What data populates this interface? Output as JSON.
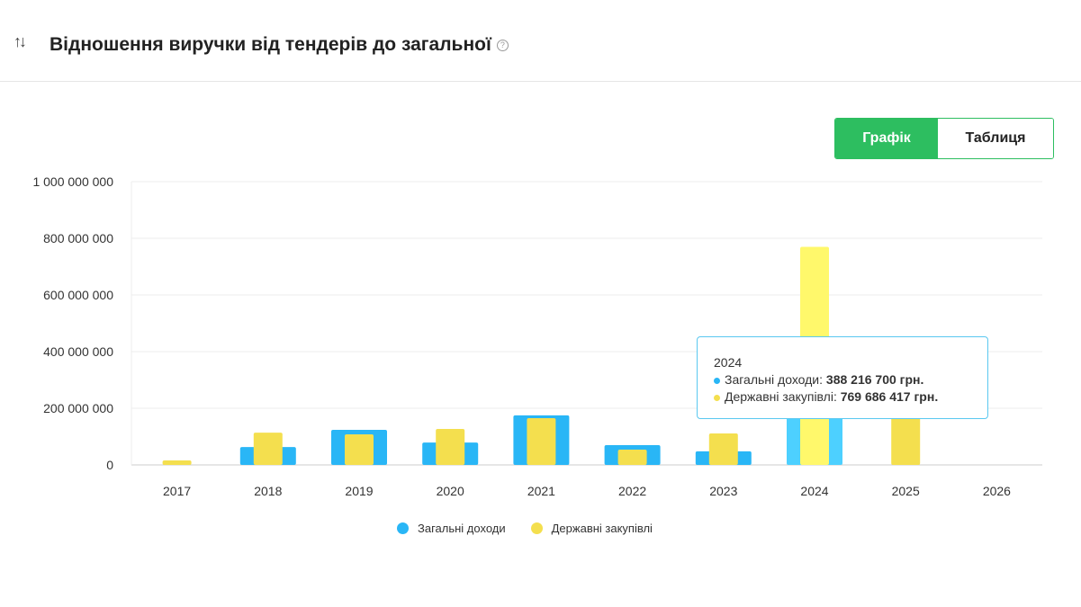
{
  "header": {
    "title": "Відношення виручки від тендерів до загальної",
    "sort_icon": "sort-arrows-icon",
    "help_icon": "question-circle-icon"
  },
  "view_toggle": {
    "chart_label": "Графік",
    "table_label": "Таблиця",
    "active": "chart"
  },
  "colors": {
    "total": "#29b6f6",
    "total_highlight": "#4dd0ff",
    "tenders": "#f4df4e",
    "tenders_highlight": "#fff86b",
    "accent": "#2dbe60"
  },
  "chart_data": {
    "type": "bar",
    "categories": [
      "2017",
      "2018",
      "2019",
      "2020",
      "2021",
      "2022",
      "2023",
      "2024",
      "2025",
      "2026"
    ],
    "series": [
      {
        "name": "Загальні доходи",
        "values": [
          0,
          63000000,
          124000000,
          79000000,
          175000000,
          70000000,
          48000000,
          388216700,
          0,
          0
        ]
      },
      {
        "name": "Державні закупівлі",
        "values": [
          16000000,
          114000000,
          108000000,
          127000000,
          165000000,
          54000000,
          111000000,
          769686417,
          200000000,
          0
        ]
      }
    ],
    "ylim": [
      0,
      1000000000
    ],
    "yticks": [
      "0",
      "200 000 000",
      "400 000 000",
      "600 000 000",
      "800 000 000",
      "1 000 000 000"
    ],
    "ytick_values": [
      0,
      200000000,
      400000000,
      600000000,
      800000000,
      1000000000
    ],
    "legend_position": "bottom",
    "highlighted": "2024"
  },
  "tooltip": {
    "year": "2024",
    "total_label": "Загальні доходи: ",
    "total_value": "388 216 700 грн.",
    "tenders_label": "Державні закупівлі: ",
    "tenders_value": "769 686 417 грн."
  }
}
